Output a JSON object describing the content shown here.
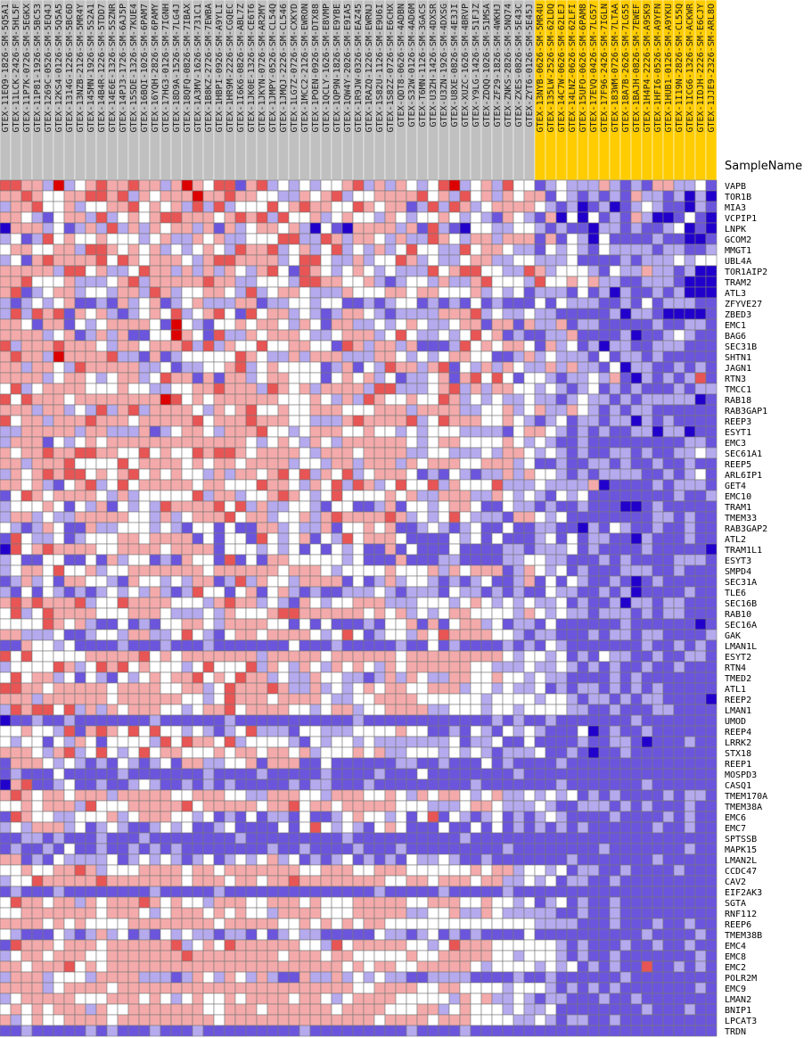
{
  "chart_data": {
    "type": "heatmap",
    "column_header": "SampleName",
    "samples": [
      "GTEX-11EQ9-1826-SM-5Q5A1",
      "GTEX-11LCK-2426-SM-5HL5F",
      "GTEX-11P7K-0726-SM-5EGKX",
      "GTEX-11P81-1926-SM-5BC53",
      "GTEX-1269C-0526-SM-5EQ4J",
      "GTEX-12KS4-0126-SM-5Q5A5",
      "GTEX-1314G-1226-SM-5BC6D",
      "GTEX-13NZB-2126-SM-5MR4Y",
      "GTEX-145MN-1926-SM-5S2A1",
      "GTEX-14B4R-1226-SM-5TDD7",
      "GTEX-14E6E-1326-SM-5SZNR",
      "GTEX-14PJ3-1726-SM-6AJ5P",
      "GTEX-15SDE-1326-SM-7KUE4",
      "GTEX-16BQI-1026-SM-6PAM7",
      "GTEX-16YQH-2826-SM-6PAMY",
      "GTEX-17HG3-0126-SM-7IGNH",
      "GTEX-18D9A-1526-SM-7LG4J",
      "GTEX-18QFQ-0826-SM-7IBAX",
      "GTEX-1A3MV-1626-SM-731C1",
      "GTEX-1B8KZ-2726-SM-7EWBA",
      "GTEX-1HBPI-0926-SM-A9YLI",
      "GTEX-1HR9M-2226-SM-CGQEC",
      "GTEX-1I6K6-0826-SM-ABL7Z",
      "GTEX-1JK0E-1326-SM-CE6T6",
      "GTEX-1JKYN-0726-SM-AR2MY",
      "GTEX-1JMPY-0526-SM-CL54Q",
      "GTEX-1JMQJ-2226-SM-CL546",
      "GTEX-1LG7Z-0726-SM-CXKYD",
      "GTEX-1MCC2-2126-SM-EWRON",
      "GTEX-1POEN-0926-SM-DTX88",
      "GTEX-1QCLY-1626-SM-E8VMP",
      "GTEX-1QP9N-1826-SM-E9YBE",
      "GTEX-1QW4Y-2026-SM-E9IA5",
      "GTEX-1R9JW-0326-SM-EAZ45",
      "GTEX-1RAZQ-1226-SM-EWRNJ",
      "GTEX-1S82U-1126-SM-E9U6I",
      "GTEX-1S82Z-0726-SM-E6CHX",
      "GTEX-QDT8-0626-SM-4ADBN",
      "GTEX-S32W-0126-SM-4AD6M",
      "GTEX-T6MN-1126-SM-3GACS",
      "GTEX-U3ZH-1426-SM-4DXSR",
      "GTEX-U3ZN-1926-SM-4DXSG",
      "GTEX-U8XE-0826-SM-4E3JI",
      "GTEX-XUZC-1626-SM-4BRVP",
      "GTEX-Y9LG-1426-SM-51FJZ",
      "GTEX-ZDQQ-1026-SM-51MSA",
      "GTEX-ZF29-1826-SM-4WKHJ",
      "GTEX-ZNKS-2826-SM-5NQ74",
      "GTEX-ZXES-0826-SM-5E43C",
      "GTEX-ZYT6-0126-SM-5E45J",
      "GTEX-13NYB-0626-SM-5MR4U",
      "GTEX-135LW-2526-SM-62LDQ",
      "GTEX-14C7W-0626-SM-62LEJ",
      "GTEX-14LNZ-0626-SM-62LFI",
      "GTEX-15UFO-0626-SM-6PAM8",
      "GTEX-17EVQ-0426-SM-7LG57",
      "GTEX-17F96-2426-SM-7IGLN",
      "GTEX-183WM-0726-SM-7LTAA",
      "GTEX-18A7B-2626-SM-7LG55",
      "GTEX-1BAJH-0826-SM-7EWEF",
      "GTEX-1H4P4-2226-SM-A9SK9",
      "GTEX-1HFI6-0526-SM-A9YFN",
      "GTEX-1HUB1-0126-SM-A9YKU",
      "GTEX-1I19N-2826-SM-CL55Q",
      "GTEX-1ICG6-1326-SM-ACKWR",
      "GTEX-1IDJH-2226-SM-E6CJY",
      "GTEX-1JJE9-2326-SM-ARL8O"
    ],
    "highlighted_sample_start_index": 50,
    "genes": [
      "VAPB",
      "TOR1B",
      "MIA3",
      "VCPIP1",
      "LNPK",
      "GCOM2",
      "MMGT1",
      "UBL4A",
      "TOR1AIP2",
      "TRAM2",
      "ATL3",
      "ZFYVE27",
      "ZBED3",
      "EMC1",
      "BAG6",
      "SEC31B",
      "SHTN1",
      "JAGN1",
      "RTN3",
      "TMCC1",
      "RAB18",
      "RAB3GAP1",
      "REEP3",
      "ESYT1",
      "EMC3",
      "SEC61A1",
      "REEP5",
      "ARL6IP1",
      "GET4",
      "EMC10",
      "TRAM1",
      "TMEM33",
      "RAB3GAP2",
      "ATL2",
      "TRAM1L1",
      "ESYT3",
      "SMPD4",
      "SEC31A",
      "TLE6",
      "SEC16B",
      "RAB10",
      "SEC16A",
      "GAK",
      "LMAN1L",
      "ESYT2",
      "RTN4",
      "TMED2",
      "ATL1",
      "REEP2",
      "LMAN1",
      "UMOD",
      "REEP4",
      "LRRK2",
      "STX18",
      "REEP1",
      "MOSPD3",
      "CASQ1",
      "TMEM170A",
      "TMEM38A",
      "EMC6",
      "EMC7",
      "SPTSSB",
      "MAPK15",
      "LMAN2L",
      "CCDC47",
      "CAV2",
      "EIF2AK3",
      "SGTA",
      "RNF112",
      "REEP6",
      "TMEM38B",
      "EMC4",
      "EMC8",
      "EMC2",
      "POLR2M",
      "EMC9",
      "LMAN2",
      "BNIP1",
      "LPCAT3",
      "TRDN"
    ],
    "value_range": [
      -3,
      3
    ],
    "color_scale": {
      "low": "#2200cc",
      "mid": "#ffffff",
      "high": "#dd0000"
    },
    "header_colors": {
      "default": "#c0c0c0",
      "highlighted": "#ffcc00"
    },
    "values_encoding": "Row-major matrix (genes x samples). Each character maps to a value: a=-3, b=-2, c=-1, d=0, e=1, f=2, g=3.",
    "values_rows": [
      "ffeecgcdefeefeecegedffbefcdcdcddefcecedcdfgcdecfddbcdcccecbcbeeccdb",
      "eefeddeeffefcedeeegeefeeddccedefcddeeeefdecfdecedeebdcbcbcbeccbcaca",
      "ceefddecddeefdedecfcfcdddfdefeeddfedeebcfcfecdeeeedcbcabcabcdcbbacb",
      "eedcbdeecfcdedeffeeedefefcfddecdeddcedcddedcdcbedcbeadadbcbecaabdba",
      "aeeecdbcecfcecedeecebecdeedecadbaeeeecebfcbaddccddcbcbbaccbcbbcdaba",
      "cdbcfdeddedddcdeccedeccdddffccfeceedceccfedceeceeebebdcadbbbbcbbaab",
      "deeddeecffededecdcdedcfeefcdecdfcdcecdfddccfdeedccbdcdcbdccccbccbbc",
      "cdbefeeeefdfedeeedceffeeeecdffdccecddfecdccdeeccddcccdbbbbcbcccdcdd",
      "eeeeecffdeccdfeecececedcefdbfedcdedcdcccfdeffddccfecdddcbdcceccbcaa",
      "eefdddecccdefceeeeefeeccdddcffeeddecbcddceccefdddcfddedeccbbcccbaaa",
      "efbcdeecddceecfecddeedcfcdeedcccedddeedeedddecdcdbcccbdbcacbbcbcaaa",
      "cbcdcdebbcbecdebcdeccceebccddcddbbcbcddbcbcbdbcbbbdbdcccbbcbdbcccbb",
      "cfcfefbedecbcdedfcdefdbfdeecdcbceedcbcccceeefcdccdccbbbbbcaccbaaaab",
      "eedbeebdcdeeeedbgdcbddedeedcedbeeccdcdedccdeebeebeccebccbbbbbcbbccb",
      "eeeecdebcecebbddgedbfccedeeedccdeeecdfdccdcdfdebcbbccebbbbcabbcdcbb",
      "fceeefeeedceedeeefcfceddfddeeddbfeceecebbbcfdedeedbecdbcaccbbcccbbb",
      "efeecgeeeefccbebcdddddfedcceceeeccceedcdcdeeddbbcecdcccbdbccbcbbbbb",
      "eeceedcfeeeeeccdbccddefcdeddddbcebdcfeecefbdcecedccececcbdaccbbcbcb",
      "eeeecdeedcdeecdfeebebeecdeedddbdedecdbccdebefdfdbddcbccdcebacbcbcfb",
      "dfcdeeeedddeddccddeefeeecfedeceeeecffcccdefceceeddcdcbcdbcbcbbbcbcc",
      "fdfeeedeeeeeeeegfdedeeeeeedddedcecfeddeddfecdcdccdccbcdccbcbcccccab",
      "eeeceecdcfcefceeeedcedefddeddeeedddeeeceeeeccddecdeccedcbcbccbbbbbb",
      "fdeeceeefeeedeeeeefdeeefeeeddcccefeeeefcdfeeeddedcbcdbccbccacbcbbbb",
      "cceeeeeceecccebcdeedceeefddcdeeeddeddcdcdddccccbdeedcbcbcbbccaccabb",
      "ceeebdcdedeeeeeeeeeeeeedcdedcedceeeeeedcdeeddddedcdcbbcbbbbbbbbbccb",
      "edeefeeffeeddfdeddfeffedeeeedceeedeeeeccddcccdceedcdcbcbbccbcbbccdc",
      "eeceeefddddfdeeeededeedeeeecddceeceeecedeeeddeeecdbbcbbccbcbbcbbcbb",
      "cedefeffdedefdededdceceedefdfcedfcdeeedbcbdcbcceceddcbcbccccbbcbcdb",
      "eedecbdefcdfdeeeeedeedddfeedcedfcfecdfddfcedddfcccdcccceabbbbcbcccb",
      "bdfedeeeedcecdddddfceecddefedcdfddddedecceeeccedcdcbdcdbbbbbbbbcbbc",
      "cdddedbdcebdcdcfeeeefdfceccddcbddbbcebddcdeedbbdccbcbbcbbbaabcbbbbb",
      "ceecdcceeeeeddcecdeeefdeecddecefeeeefecdcdfdcccbeedcdbbbbbbbbccbcbb",
      "dcbcedbbeccdddcdcbddbdbbeecdccebddedebbcdcbcdbbdbbccbbacbdcbbcbbcbb",
      "bfdccdbcdddeedeeeebdbddbfdcdebdcfdeeedbbbbdcdbdbbbcdbdbccbbacbbbcbb",
      "afdefeeeeddeeeedeeeebdddcdcdbdbdcdbbebdbbbdbbbbccbcccdbcbbbbcbbbbba",
      "cdbbddbbdbecddbcbeddbfbdbeedddddcdbbbebbbccbbbbccddccbbbcbcbbbbcccb",
      "cdeedfddecddeeeeeeedeeeeeedeeedcddddedddecedeeebcedcdbcbbbcccbbcbbb",
      "bcecdbeeddcbeddcdceebcfceddceeeebdbcecddcbcbcdbbcebdbdcbbcbabcbbbbb",
      "cbdbdcbcbcdcdcecbcfddbdebdecbcbbcccdcbcccbdccbcbcbbdccbbcbcabbbbcbb",
      "efefeeefcddfeeeedddcefeecdcbedcddeeecccdddcdedcdcdccdbcbbcaccbccbbb",
      "dfcdfeeeedddeeedcccdcedddeffeeeeeededecdcdeeddddcedcdccbcccbcbccbbb",
      "ddddfedecbbdbcbddeedceeeeddbdbdbbbcbddebebdeecdbccbdbbbbbbcbbbbbbab",
      "eecccdbbcddceeccdfdcbdeedeeeedcdfdbcddcedfeeeeddcbccbbbcbccbccbbbbc",
      "bbeddcdbbbbcbbbcbbbcbbbbbbbdbbbcbbbbbcbbdbcbbbbcbcbdcbbbbbbbcbbcbcb",
      "fdfdddddeeeeefdedeeeeeeeceeeeedeeeeeedeeeeeeeeedcddcdbcbdccbbcbbccb",
      "cddddfecdfefdedddcdfdddfcedcedcededcedeeeeeeddcccdccdcbcbcbbcbbcbbb",
      "dfdeecdbdcbdcdedeefdedfeecdcceddccbcecedcceeddeddcdccbbbbcbcbbbbbbb",
      "ffeedeeeeedeeeeddeecdfeeefeccecdcdedeeddeeecddcdccdbcbccbcbcbcbbbbb",
      "eeeceeeeeedeeeeeeddcdfeeedeeeedccddeeeeddddddcddddcddcbccbcbccbbbba",
      "cfeffdfcecedeeeddcdeefdeeeeddcdeecddeeeeccdddcddcddddccbbcbbbccbbbb",
      "abbcbbcbbbbbbbcbbbbbbcbbbbbbbbbbbcbbbbbbbbbbbbcbcbbcbbbbbbbcbbbbbbb",
      "ddeddcfbefedfdfddcdcbcdfcccbddcccddddeddbbcbdcbdcdcbbbdabcbbcbbbbbb",
      "dcddbdcedbddddcfdfeedfcddddcbdcddcdcccccccdbccdbbdbbbbcbbccbabbbcbb",
      "eeedcefcdfdcdfdeedddedeedeedecdddedeccdddcdcdcbcccdbbcbabbcbbbbbbbb",
      "beeedcdcbcbdcbcdbeeccddebeeebbdbbbbbbccbbcbbbdbcbbbbcbbbbbbbbbbbbbb",
      "bcbbbdbbbbbcbbbbbbbcbbbbcbbbbbcbbbbcbbbdbbbbbbbbcbbbbbbbbbbbbbbbbbb",
      "aefbbcdbbcbbcdcbbcbcbcbbbbbcbccbbbcbbbbbbbbbcbbbbbbbcbbbbbbbcbbbbbb",
      "efedeedeeeceeeeeddeeeddcceeeddceeeddedcedeedcdeccdcdcdbcbcbbbbcbccb",
      "ddedeeecfdddeeeeefdeeeeedeefdeedeeeeedddcccdeedcccdcbbcccbcbcbbbcbb",
      "bfeddccdddecdeeeddcdbcbdbccbdbbcdeddcdbdfbdcbcdbcbcdcbbbbcbbbbcbcbb",
      "cdceeecdbcdcbbcdcdbbcdbbbbdbdfdcdcbdedbbbdbbdbdbcbcbcbcbbbbbbcbbcbb",
      "bbccbcbbbcbbbcbbbbbbbbcbbbbbbbbbcbbbbbbbbbbcbbbbbbbbbbbbbbbbbbbbbbb",
      "bcbbcbdbbcbbcbcbcbbbbbbbbcbbcbbbbcbbbcbbbbbbbbbcbbbbbbbbcbbbbbbbcbb",
      "eebcbdccccdbcdcdcbcdbcdcdecdbcbcdbcbcbdccdcbbcbbbbbbbcbbbbbbbcbbbbb",
      "ddeddeefecdddeeeedeedeeeeeeeddeeeddeeeddddddedeecddcdbccbbcbbbbcbbb",
      "cddfeeeeefeeeeeeedeeedeedeefeeeeeeeeddeedeeedeeccdcdbccbbcbbbbbbbbb",
      "bcbbbcbbbbbbbbcbbbbbcbbbbbbbbbbbbbbcbbbbbcbbbbbcbbbbbbbbbbbbbbbbbbb",
      "dfeedeecedeeefededdceeeddeeededddeeeeeddeeeddeddcdbcdbcbbcbbbbbbbbb",
      "ddeeeeeeedeeedcdeeedededdceeeedddeeeeeccddeccedcccccbbcbbcbbbbbbbbb",
      "eeeedededdddeeeeeeeedeeeeeddedededeeddddddddddddddccccbbbcbbbcbbcbb",
      "dcbbbdcbcecdbcbdcdccbccbdbcdccbbbbbdccbcdbcbcbbbbdbbbbbbbbbbcbbbbcb",
      "bfeeedeeedeeeeeefcdedfeeeeeeddcfdeeeeeddcdfeeeddddddcbcbbbcbbcbbcbb",
      "cdeedeeeddeeeeeeefeeeeeeeedeeedeedddddeddeeeeeddcdddcbcbbcbbbbbbbcb",
      "eedeeefdedeeeeeeeeeeeeeeeeeeeeeededeeddeeeeedcddddcdcdbcbcbbfbbcbcb",
      "ceeecdddceeeecccbcedcedcecbbeccecdcdccbbccccbbbbcbbcbbbbbbcbbbbbbbb",
      "eeeecdeeeedeeeeeeeeeeeeeeeeeeeeeeddeeeeddeeddddcdddcbcbcbcbbbbbbbcb",
      "cdeeeeedddeeededcdeddedeeeedeedcdeeeedddddcedeccdcbccbbbcbbcbbbbbbb",
      "dededeeeceddeeeeeeeddeeedeeeeeedeeeedddeecdedddcdccdbbbbbbbbcbbbcbb",
      "ecdeddeeeedeeeeeeeeedeeeeeeeeeeeeeedeeeedeeeddddccdcbccbbcbbbbbbbbb",
      "bbcbbbbbcbcbbbcbbbcbbbbbbbbbcbbbbbbbbbcbbbbcbbbbbbbbbbbbbbbbbbbbbbb"
    ]
  }
}
